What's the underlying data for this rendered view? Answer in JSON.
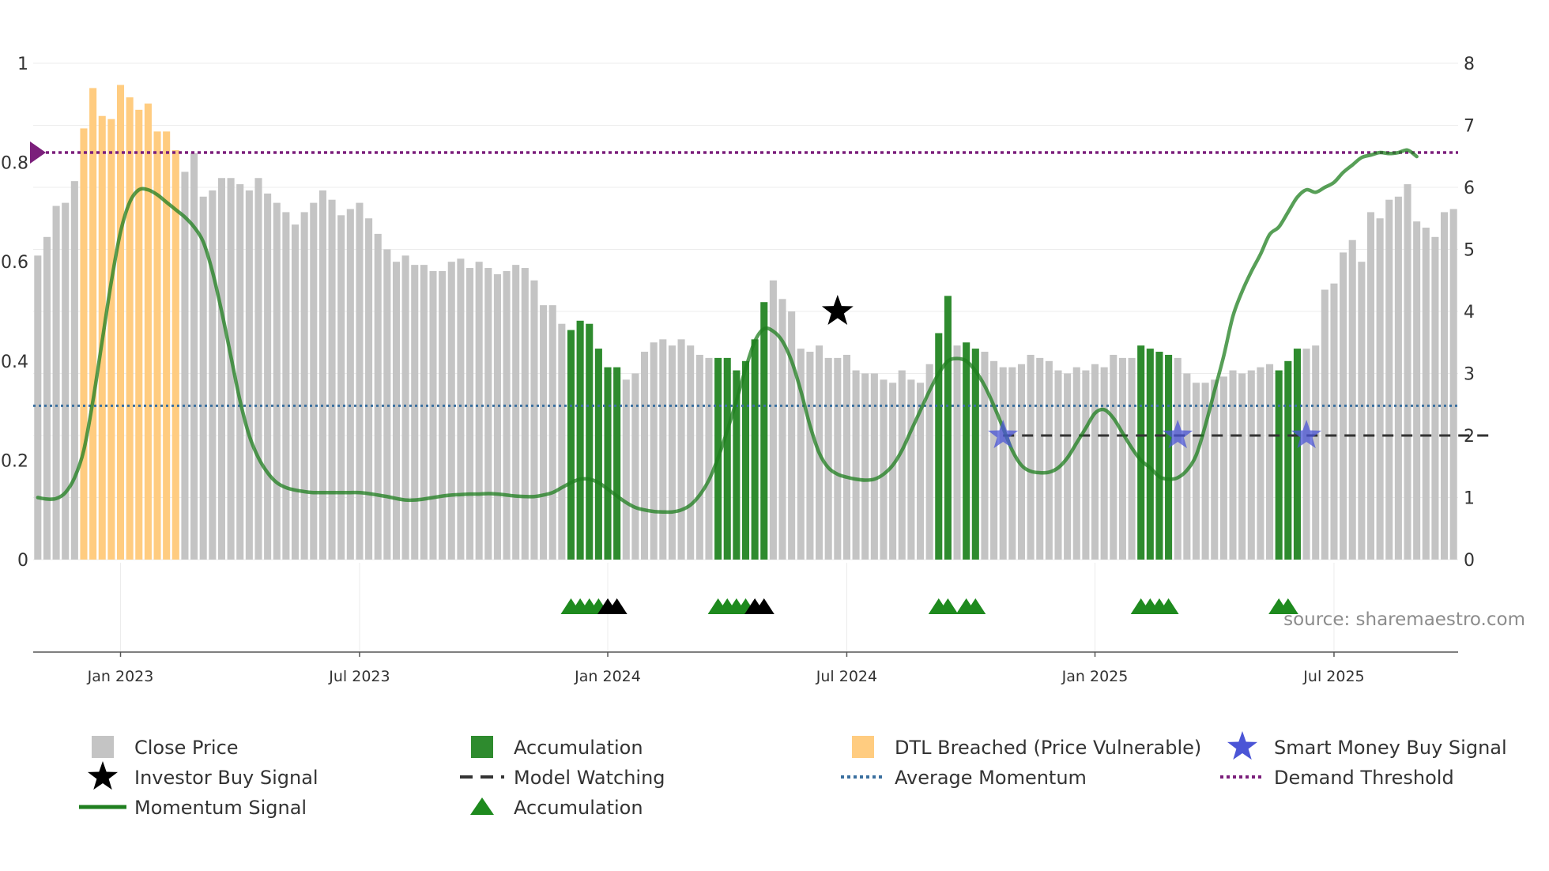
{
  "chart_data": {
    "type": "bar",
    "title": "",
    "source_text": "source: sharemaestro.com",
    "left_axis": {
      "ticks": [
        0,
        0.2,
        0.4,
        0.6,
        0.8,
        1
      ],
      "tick_labels": [
        "0",
        "0.2",
        "0.4",
        "0.6",
        "0.8",
        "1"
      ],
      "ylim": [
        0,
        1
      ]
    },
    "right_axis": {
      "ticks": [
        0,
        1,
        2,
        3,
        4,
        5,
        6,
        7,
        8
      ],
      "tick_labels": [
        "0",
        "1",
        "2",
        "3",
        "4",
        "5",
        "6",
        "7",
        "8"
      ],
      "ylim": [
        0,
        8
      ]
    },
    "x_axis": {
      "tick_labels": [
        "Jan 2023",
        "Jul 2023",
        "Jan 2024",
        "Jul 2024",
        "Jan 2025",
        "Jul 2025"
      ],
      "tick_positions": [
        9,
        35,
        62,
        88,
        115,
        141
      ]
    },
    "colors": {
      "close": "#c4c4c4",
      "accumulation": "#2e8b2e",
      "dtl": "#ffcc80",
      "momentum": "#1f7f1f",
      "demand": "#7b1f7b",
      "average": "#3a6f9f",
      "watching": "#333333",
      "investor": "#000000",
      "smart_money": "#4b55d6",
      "acc_marker": "#1e8a1e"
    },
    "close_price": [
      4.9,
      5.2,
      5.7,
      5.75,
      6.1,
      6.95,
      7.6,
      7.15,
      7.1,
      7.65,
      7.45,
      7.25,
      7.35,
      6.9,
      6.9,
      6.6,
      6.25,
      6.55,
      5.85,
      5.95,
      6.15,
      6.15,
      6.05,
      5.95,
      6.15,
      5.9,
      5.75,
      5.6,
      5.4,
      5.6,
      5.75,
      5.95,
      5.8,
      5.55,
      5.65,
      5.75,
      5.5,
      5.25,
      5.0,
      4.8,
      4.9,
      4.75,
      4.75,
      4.65,
      4.65,
      4.8,
      4.85,
      4.7,
      4.8,
      4.7,
      4.6,
      4.65,
      4.75,
      4.7,
      4.5,
      4.1,
      4.1,
      3.8,
      3.7,
      3.85,
      3.8,
      3.4,
      3.1,
      3.1,
      2.9,
      3.0,
      3.35,
      3.5,
      3.55,
      3.45,
      3.55,
      3.45,
      3.3,
      3.25,
      3.25,
      3.25,
      3.05,
      3.2,
      3.55,
      4.15,
      4.5,
      4.2,
      4.0,
      3.4,
      3.35,
      3.45,
      3.25,
      3.25,
      3.3,
      3.05,
      3.0,
      3.0,
      2.9,
      2.85,
      3.05,
      2.9,
      2.85,
      3.15,
      3.65,
      4.25,
      3.45,
      3.5,
      3.4,
      3.35,
      3.2,
      3.1,
      3.1,
      3.15,
      3.3,
      3.25,
      3.2,
      3.05,
      3.0,
      3.1,
      3.05,
      3.15,
      3.1,
      3.3,
      3.25,
      3.25,
      3.45,
      3.4,
      3.35,
      3.3,
      3.25,
      3.0,
      2.85,
      2.85,
      2.9,
      2.95,
      3.05,
      3.0,
      3.05,
      3.1,
      3.15,
      3.05,
      3.2,
      3.4,
      3.4,
      3.45,
      4.35,
      4.45,
      4.95,
      5.15,
      4.8,
      5.6,
      5.5,
      5.8,
      5.85,
      6.05,
      5.45,
      5.35,
      5.2,
      5.6,
      5.65
    ],
    "accumulation_ranges": [
      [
        58,
        63
      ],
      [
        74,
        79
      ],
      [
        98,
        99
      ],
      [
        101,
        102
      ],
      [
        120,
        123
      ],
      [
        135,
        137
      ]
    ],
    "dtl_range": [
      5,
      15
    ],
    "momentum_signal": [
      0.125,
      0.122,
      0.123,
      0.135,
      0.165,
      0.22,
      0.32,
      0.44,
      0.56,
      0.66,
      0.72,
      0.745,
      0.745,
      0.735,
      0.72,
      0.705,
      0.69,
      0.67,
      0.64,
      0.58,
      0.5,
      0.41,
      0.32,
      0.25,
      0.205,
      0.175,
      0.155,
      0.145,
      0.14,
      0.137,
      0.135,
      0.135,
      0.135,
      0.135,
      0.135,
      0.135,
      0.133,
      0.13,
      0.127,
      0.123,
      0.12,
      0.12,
      0.122,
      0.125,
      0.128,
      0.13,
      0.131,
      0.132,
      0.132,
      0.133,
      0.132,
      0.13,
      0.128,
      0.127,
      0.127,
      0.13,
      0.135,
      0.145,
      0.155,
      0.162,
      0.162,
      0.155,
      0.142,
      0.128,
      0.115,
      0.105,
      0.1,
      0.097,
      0.096,
      0.096,
      0.1,
      0.11,
      0.13,
      0.16,
      0.205,
      0.26,
      0.32,
      0.385,
      0.44,
      0.465,
      0.46,
      0.44,
      0.4,
      0.34,
      0.27,
      0.215,
      0.185,
      0.172,
      0.166,
      0.162,
      0.16,
      0.162,
      0.172,
      0.19,
      0.22,
      0.26,
      0.3,
      0.34,
      0.375,
      0.4,
      0.405,
      0.4,
      0.38,
      0.35,
      0.31,
      0.265,
      0.22,
      0.19,
      0.178,
      0.175,
      0.176,
      0.185,
      0.205,
      0.235,
      0.265,
      0.295,
      0.302,
      0.285,
      0.255,
      0.225,
      0.2,
      0.185,
      0.167,
      0.162,
      0.165,
      0.18,
      0.21,
      0.27,
      0.34,
      0.41,
      0.49,
      0.54,
      0.58,
      0.615,
      0.655,
      0.67,
      0.7,
      0.73,
      0.745,
      0.74,
      0.75,
      0.76,
      0.78,
      0.795,
      0.81,
      0.815,
      0.82,
      0.818,
      0.82,
      0.825,
      0.812
    ],
    "average_momentum": 0.31,
    "demand_threshold": 0.82,
    "model_watching_range": [
      105,
      158
    ],
    "model_watching_level": 0.25,
    "investor_buy_signal": [
      {
        "x": 87,
        "y": 0.5
      }
    ],
    "smart_money_buy_signal": [
      {
        "x": 105,
        "y": 0.25
      },
      {
        "x": 124,
        "y": 0.25
      },
      {
        "x": 138,
        "y": 0.25
      }
    ],
    "accumulation_markers_green": [
      58,
      59,
      60,
      61,
      74,
      75,
      76,
      77,
      98,
      99,
      101,
      102,
      120,
      121,
      122,
      123,
      135,
      136
    ],
    "accumulation_markers_black": [
      62,
      63,
      78,
      79
    ],
    "legend": [
      {
        "label": "Close Price",
        "kind": "square",
        "color_key": "close"
      },
      {
        "label": "Accumulation",
        "kind": "square",
        "color_key": "accumulation"
      },
      {
        "label": "DTL Breached (Price Vulnerable)",
        "kind": "square",
        "color_key": "dtl"
      },
      {
        "label": "Smart Money Buy Signal",
        "kind": "star",
        "color_key": "smart_money"
      },
      {
        "label": "Investor Buy Signal",
        "kind": "star",
        "color_key": "investor"
      },
      {
        "label": "Model Watching",
        "kind": "dash",
        "color_key": "watching"
      },
      {
        "label": "Average Momentum",
        "kind": "dot",
        "color_key": "average"
      },
      {
        "label": "Demand Threshold",
        "kind": "dot",
        "color_key": "demand"
      },
      {
        "label": "Momentum Signal",
        "kind": "line",
        "color_key": "momentum"
      },
      {
        "label": "Accumulation",
        "kind": "triangle",
        "color_key": "acc_marker"
      }
    ]
  }
}
